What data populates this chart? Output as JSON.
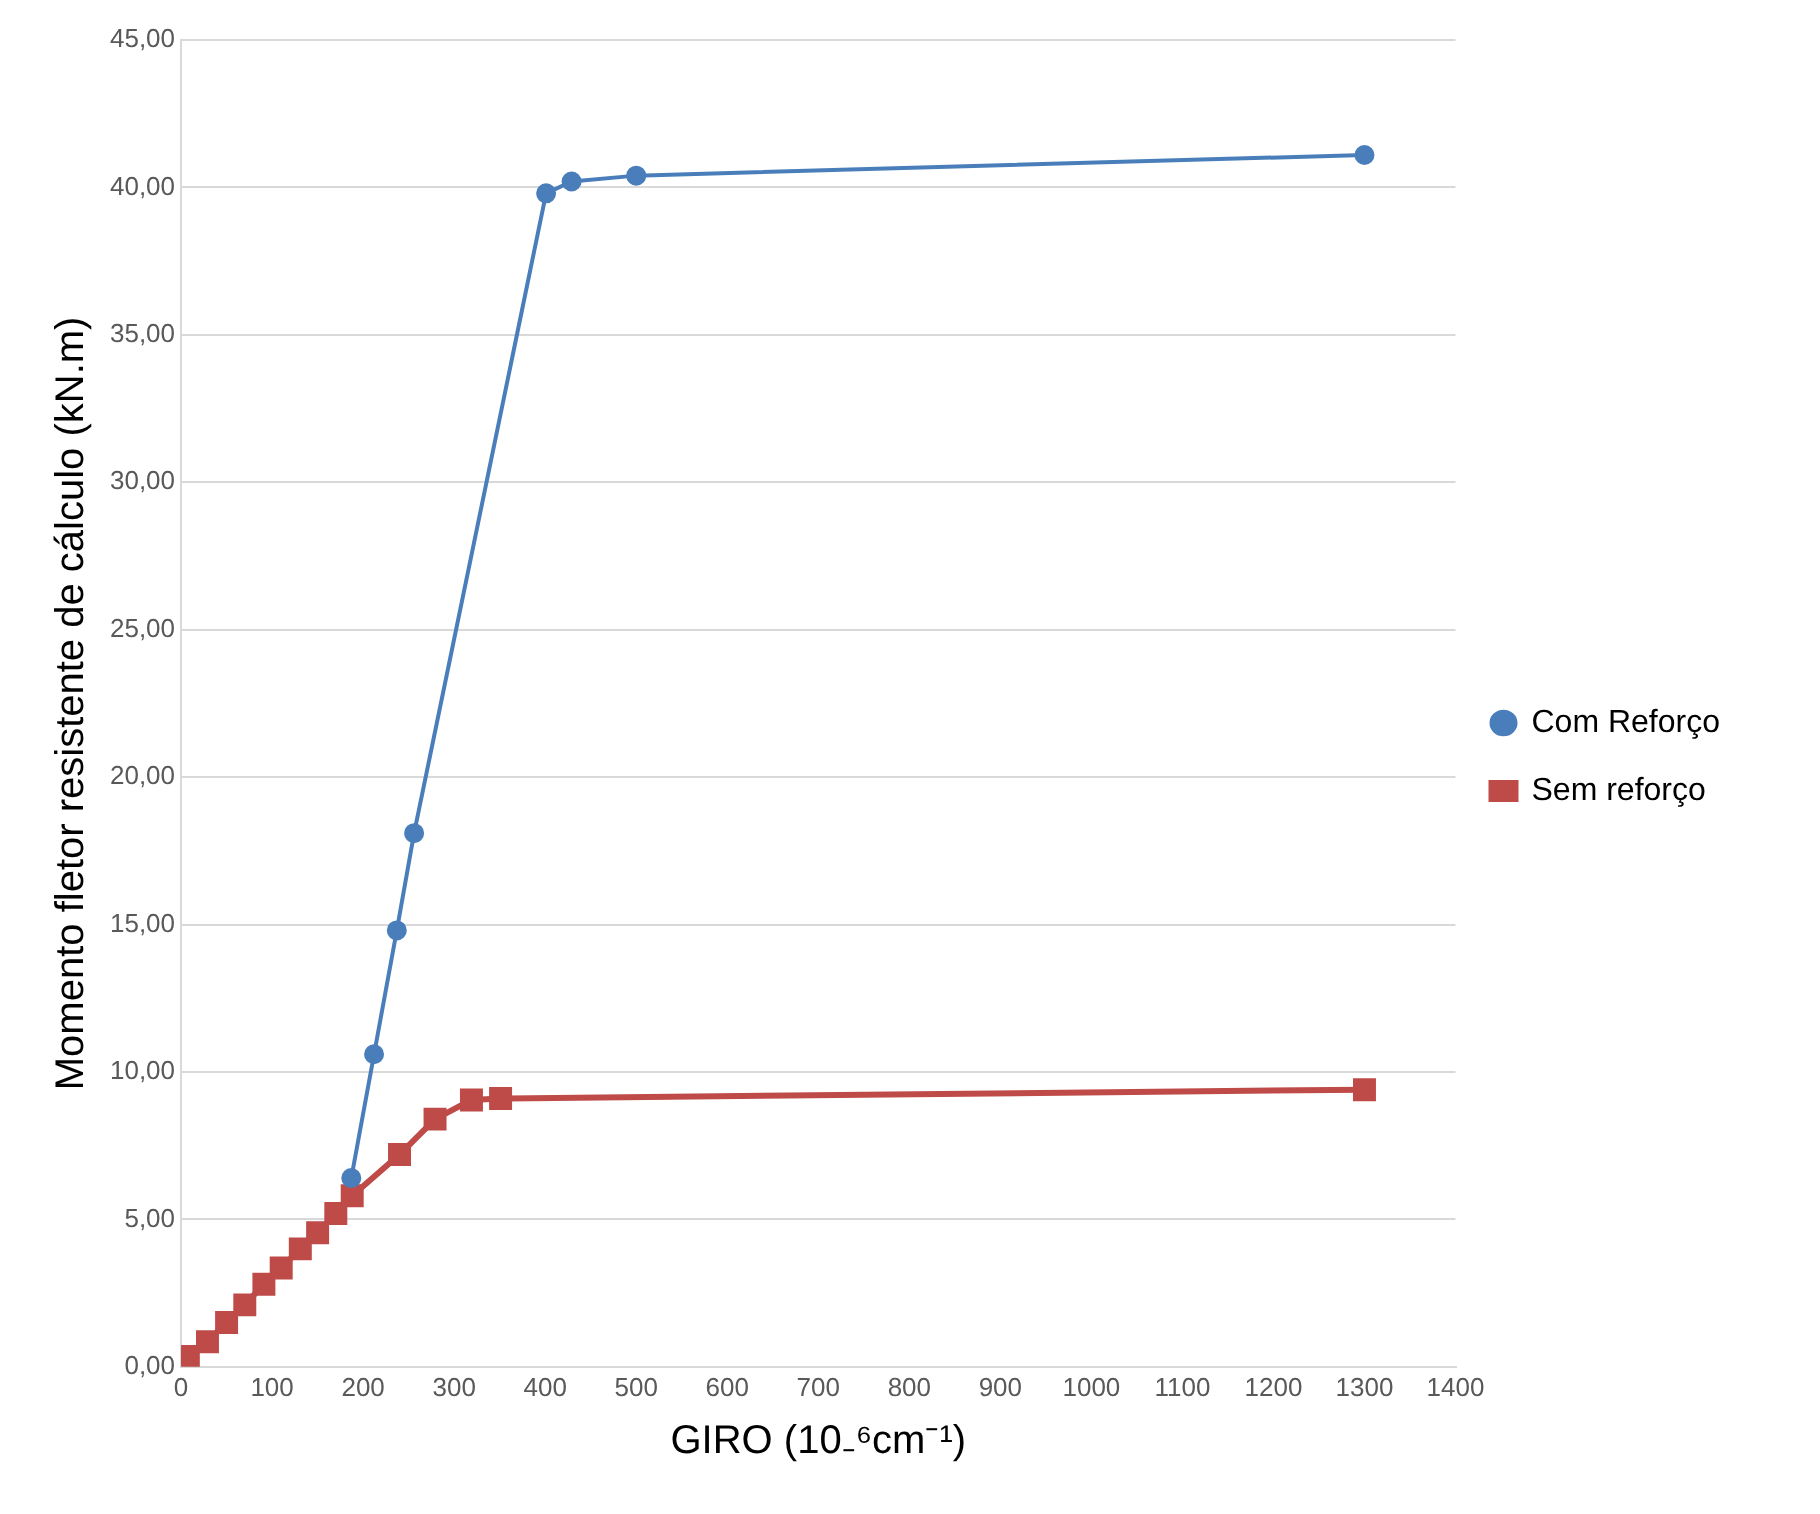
{
  "chart_data": {
    "type": "scatter",
    "xlabel": "GIRO (10₋⁶cm⁻¹)",
    "ylabel": "Momento fletor resistente de cálculo (kN.m)",
    "xlim": [
      0,
      1400
    ],
    "xticks": [
      0,
      100,
      200,
      300,
      400,
      500,
      600,
      700,
      800,
      900,
      1000,
      1100,
      1200,
      1300,
      1400
    ],
    "ylim": [
      0,
      45
    ],
    "yticks": [
      {
        "value": 0,
        "label": "0,00"
      },
      {
        "value": 5,
        "label": "5,00"
      },
      {
        "value": 10,
        "label": "10,00"
      },
      {
        "value": 15,
        "label": "15,00"
      },
      {
        "value": 20,
        "label": "20,00"
      },
      {
        "value": 25,
        "label": "25,00"
      },
      {
        "value": 30,
        "label": "30,00"
      },
      {
        "value": 35,
        "label": "35,00"
      },
      {
        "value": 40,
        "label": "40,00"
      },
      {
        "value": 45,
        "label": "45,00"
      }
    ],
    "grid": "y",
    "legend": "right",
    "series": [
      {
        "name": "Com Reforço",
        "type": "line",
        "marker": "circle",
        "color": "#4a7ebb",
        "x": [
          187,
          212,
          237,
          256,
          401,
          429,
          500,
          1300
        ],
        "values": [
          6.4,
          10.6,
          14.8,
          18.1,
          39.8,
          40.2,
          40.4,
          41.1
        ]
      },
      {
        "name": "Sem reforço",
        "type": "line",
        "marker": "square",
        "color": "#be4b48",
        "x": [
          8,
          29,
          50,
          70,
          91,
          110,
          131,
          150,
          170,
          188,
          240,
          279,
          319,
          351,
          1300
        ],
        "values": [
          0.35,
          0.85,
          1.5,
          2.1,
          2.8,
          3.35,
          4.0,
          4.55,
          5.2,
          5.8,
          7.2,
          8.4,
          9.05,
          9.1,
          9.4
        ]
      }
    ]
  }
}
